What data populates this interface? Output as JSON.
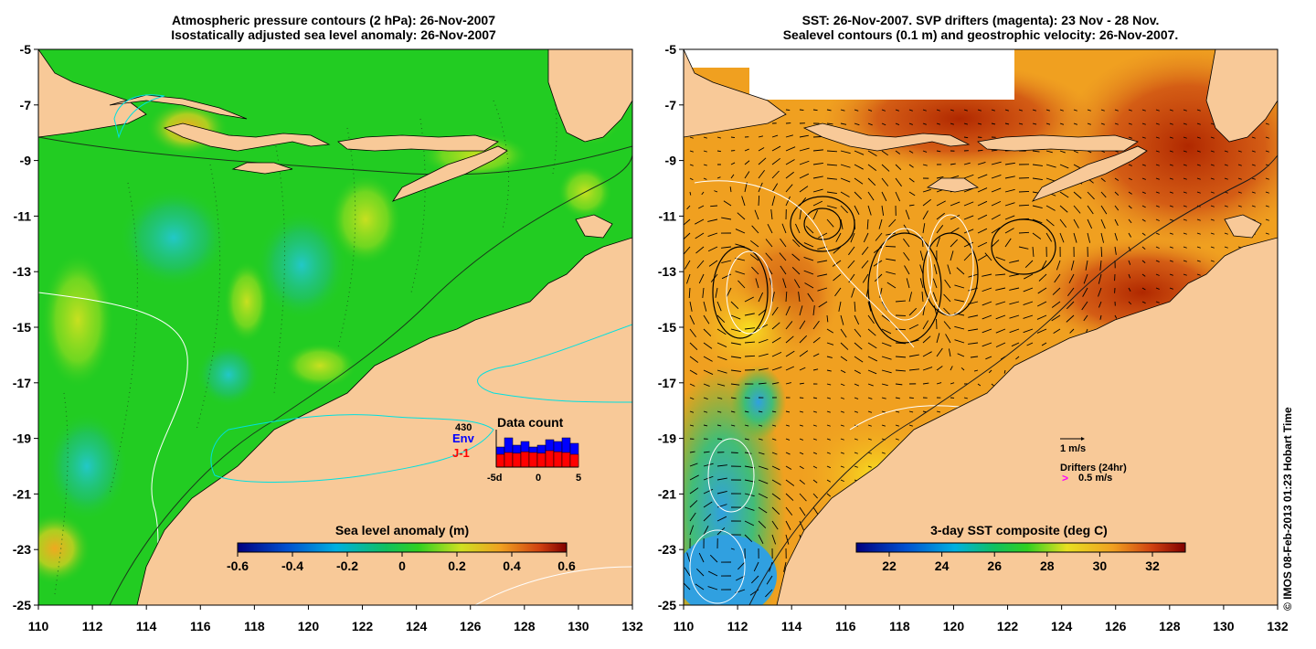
{
  "left_panel": {
    "title_line1": "Atmospheric pressure contours (2 hPa): 26-Nov-2007",
    "title_line2": "Isostatically adjusted sea level anomaly: 26-Nov-2007",
    "colorbar_label": "Sea level anomaly (m)",
    "colorbar_ticks": [
      "-0.6",
      "-0.4",
      "-0.2",
      "0",
      "0.2",
      "0.4",
      "0.6"
    ],
    "inset": {
      "title": "Data count",
      "count": "430",
      "env_label": "Env",
      "j1_label": "J-1",
      "x_ticks": [
        "-5d",
        "0",
        "5"
      ],
      "env_color": "#0000ff",
      "j1_color": "#ff0000",
      "bars_env": [
        0.55,
        0.8,
        0.6,
        0.7,
        0.55,
        0.6,
        0.75,
        0.7,
        0.8,
        0.65
      ],
      "bars_j1": [
        0.35,
        0.4,
        0.38,
        0.42,
        0.4,
        0.38,
        0.45,
        0.42,
        0.4,
        0.35
      ]
    }
  },
  "right_panel": {
    "title_line1": "SST: 26-Nov-2007. SVP drifters (magenta): 23 Nov - 28 Nov.",
    "title_line2": "Sealevel contours (0.1 m) and geostrophic velocity: 26-Nov-2007.",
    "colorbar_label": "3-day SST composite (deg C)",
    "colorbar_ticks": [
      "22",
      "24",
      "26",
      "28",
      "30",
      "32"
    ],
    "velocity_scale_label": "1 m/s",
    "drifters_label": "Drifters (24hr)",
    "drifter_speed_symbol": ">",
    "drifter_speed_label": "0.5 m/s",
    "drifter_color": "#ff00ff"
  },
  "lat_ticks": [
    "-5",
    "-7",
    "-9",
    "-11",
    "-13",
    "-15",
    "-17",
    "-19",
    "-21",
    "-23",
    "-25"
  ],
  "lon_ticks": [
    "110",
    "112",
    "114",
    "116",
    "118",
    "120",
    "122",
    "124",
    "126",
    "128",
    "130",
    "132"
  ],
  "credit": "© IMOS 08-Feb-2013 01:23 Hobart Time",
  "colors": {
    "land": "#f8c998",
    "sla_base": "#22cc22",
    "sst_base": "#f0a020",
    "sst_warm": "#c03000",
    "coast_cyan": "#00e0e0"
  }
}
